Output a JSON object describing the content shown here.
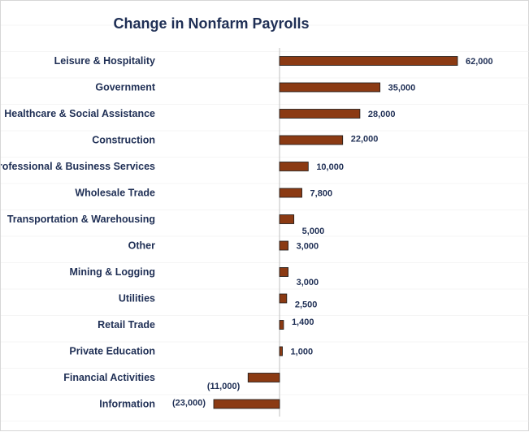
{
  "chart_data": {
    "type": "bar",
    "orientation": "horizontal",
    "title": "Change in Nonfarm Payrolls",
    "categories": [
      "Leisure & Hospitality",
      "Government",
      "Healthcare & Social Assistance",
      "Construction",
      "Professional & Business Services",
      "Wholesale Trade",
      "Transportation & Warehousing",
      "Other",
      "Mining & Logging",
      "Utilities",
      "Retail Trade",
      "Private Education",
      "Financial Activities",
      "Information"
    ],
    "values": [
      62000,
      35000,
      28000,
      22000,
      10000,
      7800,
      5000,
      3000,
      3000,
      2500,
      1400,
      1000,
      -11000,
      -23000
    ],
    "data_labels": [
      "62,000",
      "35,000",
      "28,000",
      "22,000",
      "10,000",
      "7,800",
      "5,000",
      "3,000",
      "3,000",
      "2,500",
      "1,400",
      "1,000",
      "(11,000)",
      "(23,000)"
    ],
    "xlim": [
      -23000,
      62000
    ],
    "grid": false,
    "legend": "none"
  },
  "colors": {
    "bar_fill": "#8b3a13",
    "bar_stroke": "#1a1a1a",
    "text": "#1f2f55",
    "axis": "#bfbfbf",
    "grid_faint": "#ececec"
  }
}
